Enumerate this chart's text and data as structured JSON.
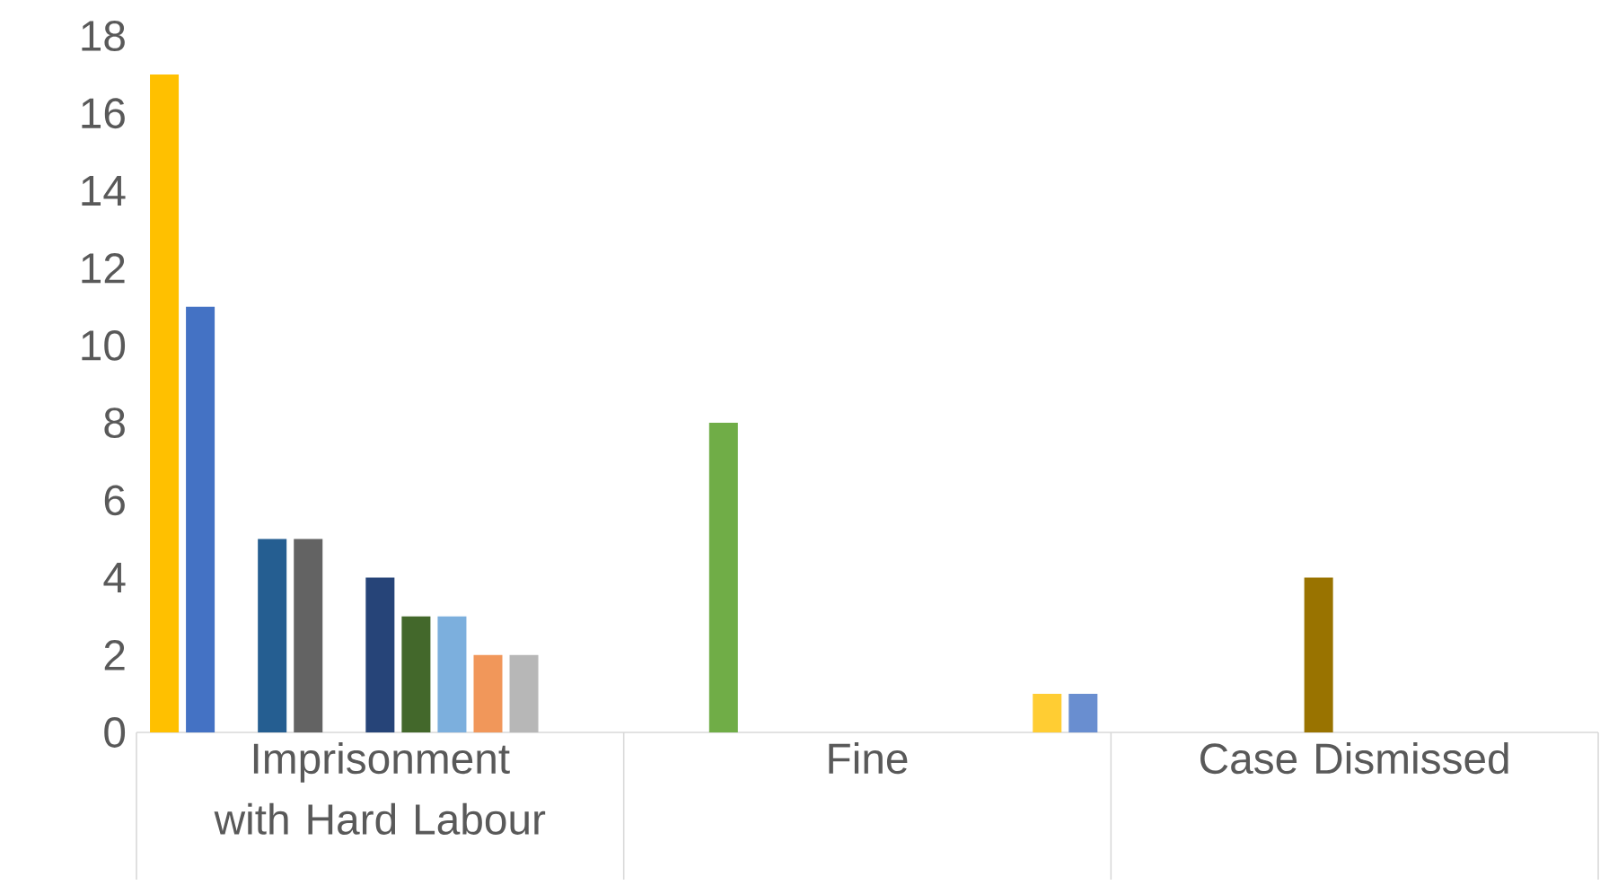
{
  "chart_data": {
    "type": "bar",
    "categories": [
      "Imprisonment with Hard Labour",
      "Fine",
      "Case Dismissed"
    ],
    "series": [
      {
        "color": "#ffc000",
        "values": [
          17,
          null,
          null
        ]
      },
      {
        "color": "#4472c4",
        "values": [
          11,
          null,
          null
        ]
      },
      {
        "color": "#70ad47",
        "values": [
          null,
          8,
          null
        ]
      },
      {
        "color": "#255e91",
        "values": [
          5,
          null,
          null
        ]
      },
      {
        "color": "#636363",
        "values": [
          5,
          null,
          null
        ]
      },
      {
        "color": "#997300",
        "values": [
          null,
          null,
          4
        ]
      },
      {
        "color": "#264478",
        "values": [
          4,
          null,
          null
        ]
      },
      {
        "color": "#43682b",
        "values": [
          3,
          null,
          null
        ]
      },
      {
        "color": "#7cafdd",
        "values": [
          3,
          null,
          null
        ]
      },
      {
        "color": "#f1975a",
        "values": [
          2,
          null,
          null
        ]
      },
      {
        "color": "#b7b7b7",
        "values": [
          2,
          null,
          null
        ]
      },
      {
        "color": "#ffcd33",
        "values": [
          null,
          1,
          null
        ]
      },
      {
        "color": "#698ed0",
        "values": [
          null,
          1,
          null
        ]
      }
    ],
    "ylim": [
      0,
      18
    ],
    "yticks": [
      0,
      2,
      4,
      6,
      8,
      10,
      12,
      14,
      16,
      18
    ],
    "grid": false
  }
}
